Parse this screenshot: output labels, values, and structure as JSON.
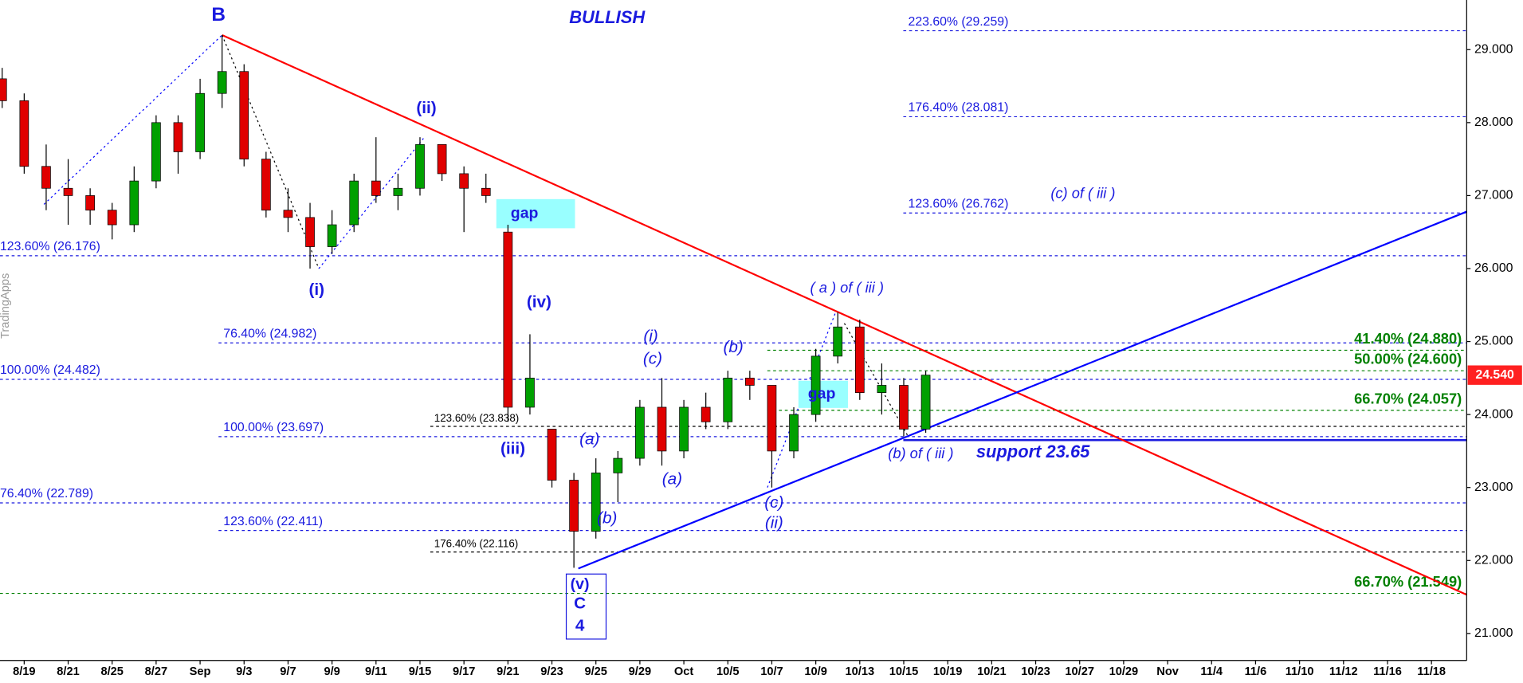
{
  "chart_data": {
    "type": "candlestick",
    "watermark": "TradingApps",
    "xlim": [
      -1.1,
      65.6
    ],
    "ylim": [
      20.63,
      29.68
    ],
    "xticks": [
      {
        "value": 0,
        "label": "8/19"
      },
      {
        "value": 2,
        "label": "8/21"
      },
      {
        "value": 4,
        "label": "8/25"
      },
      {
        "value": 6,
        "label": "8/27"
      },
      {
        "value": 8,
        "label": "Sep"
      },
      {
        "value": 10,
        "label": "9/3"
      },
      {
        "value": 12,
        "label": "9/7"
      },
      {
        "value": 14,
        "label": "9/9"
      },
      {
        "value": 16,
        "label": "9/11"
      },
      {
        "value": 18,
        "label": "9/15"
      },
      {
        "value": 20,
        "label": "9/17"
      },
      {
        "value": 22,
        "label": "9/21"
      },
      {
        "value": 24,
        "label": "9/23"
      },
      {
        "value": 26,
        "label": "9/25"
      },
      {
        "value": 28,
        "label": "9/29"
      },
      {
        "value": 30,
        "label": "Oct"
      },
      {
        "value": 32,
        "label": "10/5"
      },
      {
        "value": 34,
        "label": "10/7"
      },
      {
        "value": 36,
        "label": "10/9"
      },
      {
        "value": 38,
        "label": "10/13"
      },
      {
        "value": 40,
        "label": "10/15"
      },
      {
        "value": 42,
        "label": "10/19"
      },
      {
        "value": 44,
        "label": "10/21"
      },
      {
        "value": 46,
        "label": "10/23"
      },
      {
        "value": 48,
        "label": "10/27"
      },
      {
        "value": 50,
        "label": "10/29"
      },
      {
        "value": 52,
        "label": "Nov"
      },
      {
        "value": 54,
        "label": "11/4"
      },
      {
        "value": 56,
        "label": "11/6"
      },
      {
        "value": 58,
        "label": "11/10"
      },
      {
        "value": 60,
        "label": "11/12"
      },
      {
        "value": 62,
        "label": "11/16"
      },
      {
        "value": 64,
        "label": "11/18"
      }
    ],
    "yticks": [
      {
        "value": 21,
        "label": "21.000"
      },
      {
        "value": 22,
        "label": "22.000"
      },
      {
        "value": 23,
        "label": "23.000"
      },
      {
        "value": 24,
        "label": "24.000"
      },
      {
        "value": 25,
        "label": "25.000"
      },
      {
        "value": 26,
        "label": "26.000"
      },
      {
        "value": 27,
        "label": "27.000"
      },
      {
        "value": 28,
        "label": "28.000"
      },
      {
        "value": 29,
        "label": "29.000"
      }
    ],
    "up_color": "#00a000",
    "down_color": "#e00000",
    "x": [
      -1,
      0,
      1,
      2,
      3,
      4,
      5,
      6,
      7,
      8,
      9,
      10,
      11,
      12,
      13,
      14,
      15,
      16,
      17,
      18,
      19,
      20,
      21,
      22,
      23,
      24,
      25,
      26,
      27,
      28,
      29,
      30,
      31,
      32,
      33,
      34,
      35,
      36,
      37,
      38,
      39,
      40,
      41
    ],
    "open": [
      28.6,
      28.3,
      27.4,
      27.1,
      27.0,
      26.8,
      26.6,
      27.2,
      28.0,
      27.6,
      28.4,
      28.7,
      27.5,
      26.8,
      26.7,
      26.3,
      26.6,
      27.2,
      27.0,
      27.1,
      27.7,
      27.3,
      27.1,
      26.5,
      24.1,
      23.8,
      23.1,
      22.4,
      23.2,
      23.4,
      24.1,
      23.5,
      24.1,
      23.9,
      24.5,
      24.4,
      23.5,
      24.0,
      24.8,
      25.2,
      24.3,
      24.4,
      23.8
    ],
    "high": [
      28.75,
      28.4,
      27.7,
      27.5,
      27.1,
      26.9,
      27.4,
      28.1,
      28.1,
      28.6,
      29.2,
      28.8,
      27.6,
      27.1,
      26.9,
      26.8,
      27.3,
      27.8,
      27.3,
      27.8,
      27.7,
      27.4,
      27.3,
      26.6,
      25.1,
      23.8,
      23.2,
      23.4,
      23.5,
      24.2,
      24.5,
      24.2,
      24.3,
      24.6,
      24.6,
      24.4,
      24.1,
      24.9,
      25.4,
      25.3,
      24.7,
      24.5,
      24.6
    ],
    "low": [
      28.2,
      27.3,
      26.8,
      26.6,
      26.6,
      26.4,
      26.5,
      27.1,
      27.3,
      27.5,
      28.2,
      27.4,
      26.7,
      26.5,
      26.0,
      26.2,
      26.5,
      26.9,
      26.8,
      27.0,
      27.2,
      26.5,
      26.9,
      23.9,
      24.0,
      23.0,
      21.9,
      22.3,
      22.8,
      23.3,
      23.3,
      23.4,
      23.8,
      23.8,
      24.2,
      23.0,
      23.4,
      23.9,
      24.7,
      24.2,
      24.0,
      23.7,
      23.75
    ],
    "close": [
      28.3,
      27.4,
      27.1,
      27.0,
      26.8,
      26.6,
      27.2,
      28.0,
      27.6,
      28.4,
      28.7,
      27.5,
      26.8,
      26.7,
      26.3,
      26.6,
      27.2,
      27.0,
      27.1,
      27.7,
      27.3,
      27.1,
      27.0,
      24.1,
      24.5,
      23.1,
      22.4,
      23.2,
      23.4,
      24.1,
      23.5,
      24.1,
      23.9,
      24.5,
      24.4,
      23.5,
      24.0,
      24.8,
      25.2,
      24.3,
      24.4,
      23.8,
      24.54
    ],
    "last_price": {
      "value": 24.54,
      "label": "24.540"
    },
    "levels": [
      {
        "label": "223.60% (29.259)",
        "value": 29.259,
        "color": "#1a1adf"
      },
      {
        "label": "176.40% (28.081)",
        "value": 28.081,
        "color": "#1a1adf"
      },
      {
        "label": "123.60% (26.762)",
        "value": 26.762,
        "color": "#1a1adf"
      },
      {
        "label": "123.60% (26.176)",
        "value": 26.176,
        "color": "#1a1adf"
      },
      {
        "label": "76.40% (24.982)",
        "value": 24.982,
        "color": "#1a1adf"
      },
      {
        "label": "100.00% (24.482)",
        "value": 24.482,
        "color": "#1a1adf"
      },
      {
        "label": "123.60% (23.838)",
        "value": 23.838,
        "color": "#000000"
      },
      {
        "label": "100.00% (23.697)",
        "value": 23.697,
        "color": "#1a1adf"
      },
      {
        "label": "76.40% (22.789)",
        "value": 22.789,
        "color": "#1a1adf"
      },
      {
        "label": "123.60% (22.411)",
        "value": 22.411,
        "color": "#1a1adf"
      },
      {
        "label": "176.40% (22.116)",
        "value": 22.116,
        "color": "#000000"
      },
      {
        "label": "41.40% (24.880)",
        "value": 24.88,
        "color": "#008000"
      },
      {
        "label": "50.00% (24.600)",
        "value": 24.6,
        "color": "#008000"
      },
      {
        "label": "66.70% (24.057)",
        "value": 24.057,
        "color": "#008000"
      },
      {
        "label": "66.70% (21.549)",
        "value": 21.549,
        "color": "#008000"
      },
      {
        "label": "support 23.65",
        "value": 23.65,
        "color": "#1a1adf",
        "style": "solid"
      }
    ],
    "trendlines": [
      {
        "color": "#ff0000",
        "points": [
          [
            9,
            29.2
          ],
          [
            65.6,
            21.53
          ]
        ]
      },
      {
        "color": "#0000ff",
        "points": [
          [
            25.2,
            21.89
          ],
          [
            65.6,
            26.78
          ]
        ]
      }
    ],
    "wave_lines": [
      {
        "color": "#0000ff",
        "points": [
          [
            0.9,
            26.88
          ],
          [
            9,
            29.2
          ]
        ]
      },
      {
        "color": "#000000",
        "points": [
          [
            9,
            29.2
          ],
          [
            13.4,
            26.0
          ]
        ]
      },
      {
        "color": "#0000ff",
        "points": [
          [
            13.4,
            26.0
          ],
          [
            18.2,
            27.8
          ]
        ]
      },
      {
        "color": "#0000ff",
        "points": [
          [
            33.8,
            23.0
          ],
          [
            36.9,
            25.4
          ]
        ]
      },
      {
        "color": "#000000",
        "points": [
          [
            37.3,
            25.25
          ],
          [
            40.2,
            23.7
          ]
        ]
      }
    ],
    "annotations": [
      "B",
      "BULLISH",
      "(ii)",
      "(i)",
      "(iv)",
      "(iii)",
      "(v)",
      "C",
      "4",
      "(a)",
      "(b)",
      "(i)",
      "(c)",
      "(a)",
      "(b)",
      "(c)",
      "(ii)",
      "( a ) of ( iii )",
      "(b) of ( iii )",
      "(c) of ( iii )",
      "gap",
      "gap"
    ]
  }
}
